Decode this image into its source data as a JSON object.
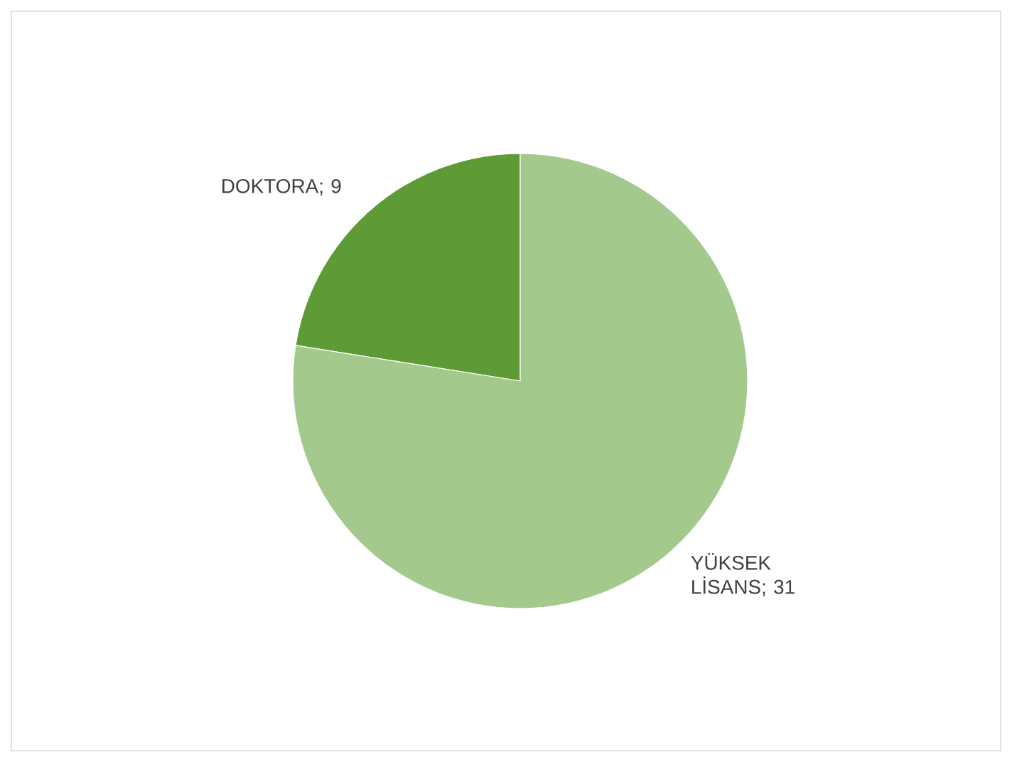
{
  "chart_data": {
    "type": "pie",
    "categories": [
      "DOKTORA",
      "YÜKSEK LİSANS"
    ],
    "values": [
      9,
      31
    ],
    "colors": [
      "#5e9a35",
      "#a3c98c"
    ],
    "value_labels": [
      "; 9",
      "; 31"
    ]
  }
}
